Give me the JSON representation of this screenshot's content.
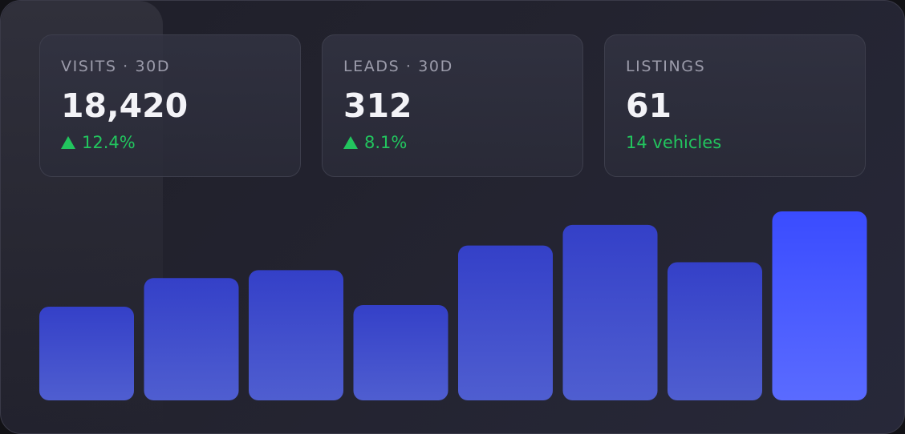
{
  "stats": [
    {
      "label": "VISITS · 30D",
      "value": "18,420",
      "delta": "12.4%",
      "trend_icon": "triangle-up-icon"
    },
    {
      "label": "LEADS · 30D",
      "value": "312",
      "delta": "8.1%",
      "trend_icon": "triangle-up-icon"
    },
    {
      "label": "LISTINGS",
      "value": "61",
      "sub": "14 vehicles"
    }
  ],
  "colors": {
    "positive": "#22c55e",
    "bar_top": "#3440c8",
    "bar_bottom": "#4f5ed0",
    "bar_highlight_top": "#3a4cff",
    "bar_highlight_bottom": "#5a6bff"
  },
  "chart_data": {
    "type": "bar",
    "values": [
      118,
      154,
      164,
      120,
      195,
      221,
      174,
      238
    ],
    "ylim": [
      0,
      240
    ],
    "highlight_index": 7,
    "grid": false,
    "legend": "none"
  }
}
